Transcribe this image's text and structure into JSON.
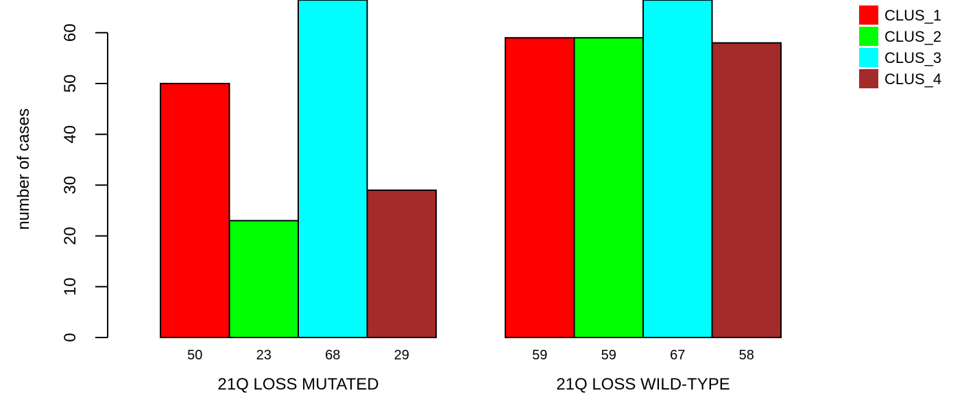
{
  "chart_data": {
    "type": "bar",
    "ylabel": "number of cases",
    "ylim": [
      0,
      66
    ],
    "yticks": [
      0,
      10,
      20,
      30,
      40,
      50,
      60
    ],
    "groups": [
      {
        "label": "21Q LOSS MUTATED",
        "values": [
          50,
          23,
          68,
          29
        ]
      },
      {
        "label": "21Q LOSS WILD-TYPE",
        "values": [
          59,
          59,
          67,
          58
        ]
      }
    ],
    "series": [
      {
        "name": "CLUS_1",
        "color": "#ff0000"
      },
      {
        "name": "CLUS_2",
        "color": "#00ff00"
      },
      {
        "name": "CLUS_3",
        "color": "#00ffff"
      },
      {
        "name": "CLUS_4",
        "color": "#a52a2a"
      }
    ],
    "legend_position": "top-right",
    "grid": false
  }
}
